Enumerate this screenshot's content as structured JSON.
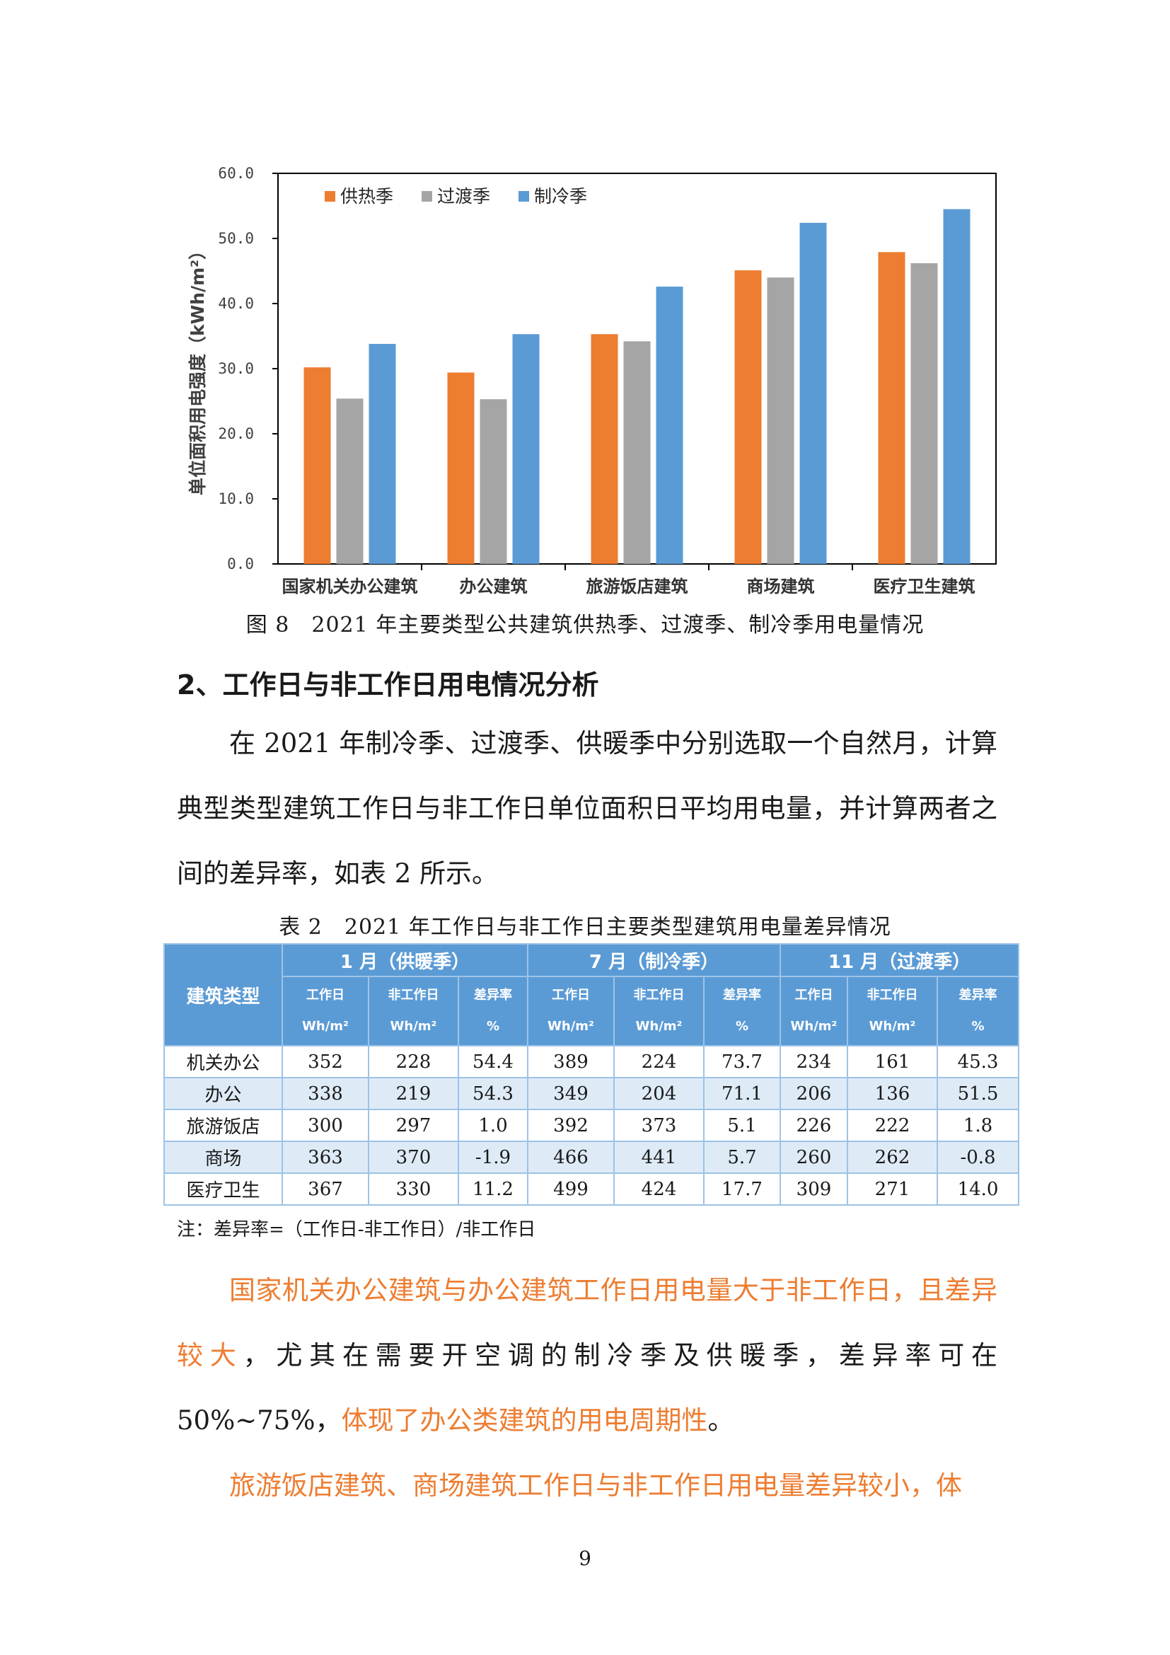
{
  "chart_data": {
    "type": "bar",
    "categories": [
      "国家机关办公建筑",
      "办公建筑",
      "旅游饭店建筑",
      "商场建筑",
      "医疗卫生建筑"
    ],
    "series": [
      {
        "name": "供热季",
        "color": "#ED7D31",
        "values": [
          30.2,
          29.4,
          35.3,
          45.1,
          47.9
        ]
      },
      {
        "name": "过渡季",
        "color": "#A5A5A5",
        "values": [
          25.4,
          25.3,
          34.2,
          44.0,
          46.2
        ]
      },
      {
        "name": "制冷季",
        "color": "#5B9BD5",
        "values": [
          33.8,
          35.3,
          42.6,
          52.4,
          54.5
        ]
      }
    ],
    "ylabel": "单位面积用电强度（kWh/m²）",
    "ylim": [
      0,
      60
    ],
    "yticks": [
      "0.0",
      "10.0",
      "20.0",
      "30.0",
      "40.0",
      "50.0",
      "60.0"
    ],
    "legend_position": "top-left",
    "grid": false
  },
  "figure_caption": "图 8　2021 年主要类型公共建筑供热季、过渡季、制冷季用电量情况",
  "section_heading": "2、工作日与非工作日用电情况分析",
  "paragraph1": "在 2021 年制冷季、过渡季、供暖季中分别选取一个自然月，计算典型类型建筑工作日与非工作日单位面积日平均用电量，并计算两者之间的差异率，如表 2 所示。",
  "table_caption": "表 2　2021 年工作日与非工作日主要类型建筑用电量差异情况",
  "table": {
    "type_header": "建筑类型",
    "groups": [
      "1 月（供暖季）",
      "7 月（制冷季）",
      "11 月（过渡季）"
    ],
    "subheaders": [
      {
        "l1": "工作日",
        "l2": "Wh/m²"
      },
      {
        "l1": "非工作日",
        "l2": "Wh/m²"
      },
      {
        "l1": "差异率",
        "l2": "%"
      }
    ],
    "rows": [
      {
        "name": "机关办公",
        "values": [
          "352",
          "228",
          "54.4",
          "389",
          "224",
          "73.7",
          "234",
          "161",
          "45.3"
        ]
      },
      {
        "name": "办公",
        "values": [
          "338",
          "219",
          "54.3",
          "349",
          "204",
          "71.1",
          "206",
          "136",
          "51.5"
        ]
      },
      {
        "name": "旅游饭店",
        "values": [
          "300",
          "297",
          "1.0",
          "392",
          "373",
          "5.1",
          "226",
          "222",
          "1.8"
        ]
      },
      {
        "name": "商场",
        "values": [
          "363",
          "370",
          "-1.9",
          "466",
          "441",
          "5.7",
          "260",
          "262",
          "-0.8"
        ]
      },
      {
        "name": "医疗卫生",
        "values": [
          "367",
          "330",
          "11.2",
          "499",
          "424",
          "17.7",
          "309",
          "271",
          "14.0"
        ]
      }
    ]
  },
  "note": "注：差异率=（工作日-非工作日）/非工作日",
  "paragraph2": {
    "highlight1": "国家机关办公建筑与办公建筑工作日用电量大于非工作日，且差异较大",
    "normal": "，尤其在需要开空调的制冷季及供暖季，差异率可在 50%~75%，",
    "highlight2": "体现了办公类建筑的用电周期性",
    "end": "。"
  },
  "paragraph3": "旅游饭店建筑、商场建筑工作日与非工作日用电量差异较小，体",
  "page_number": "9"
}
